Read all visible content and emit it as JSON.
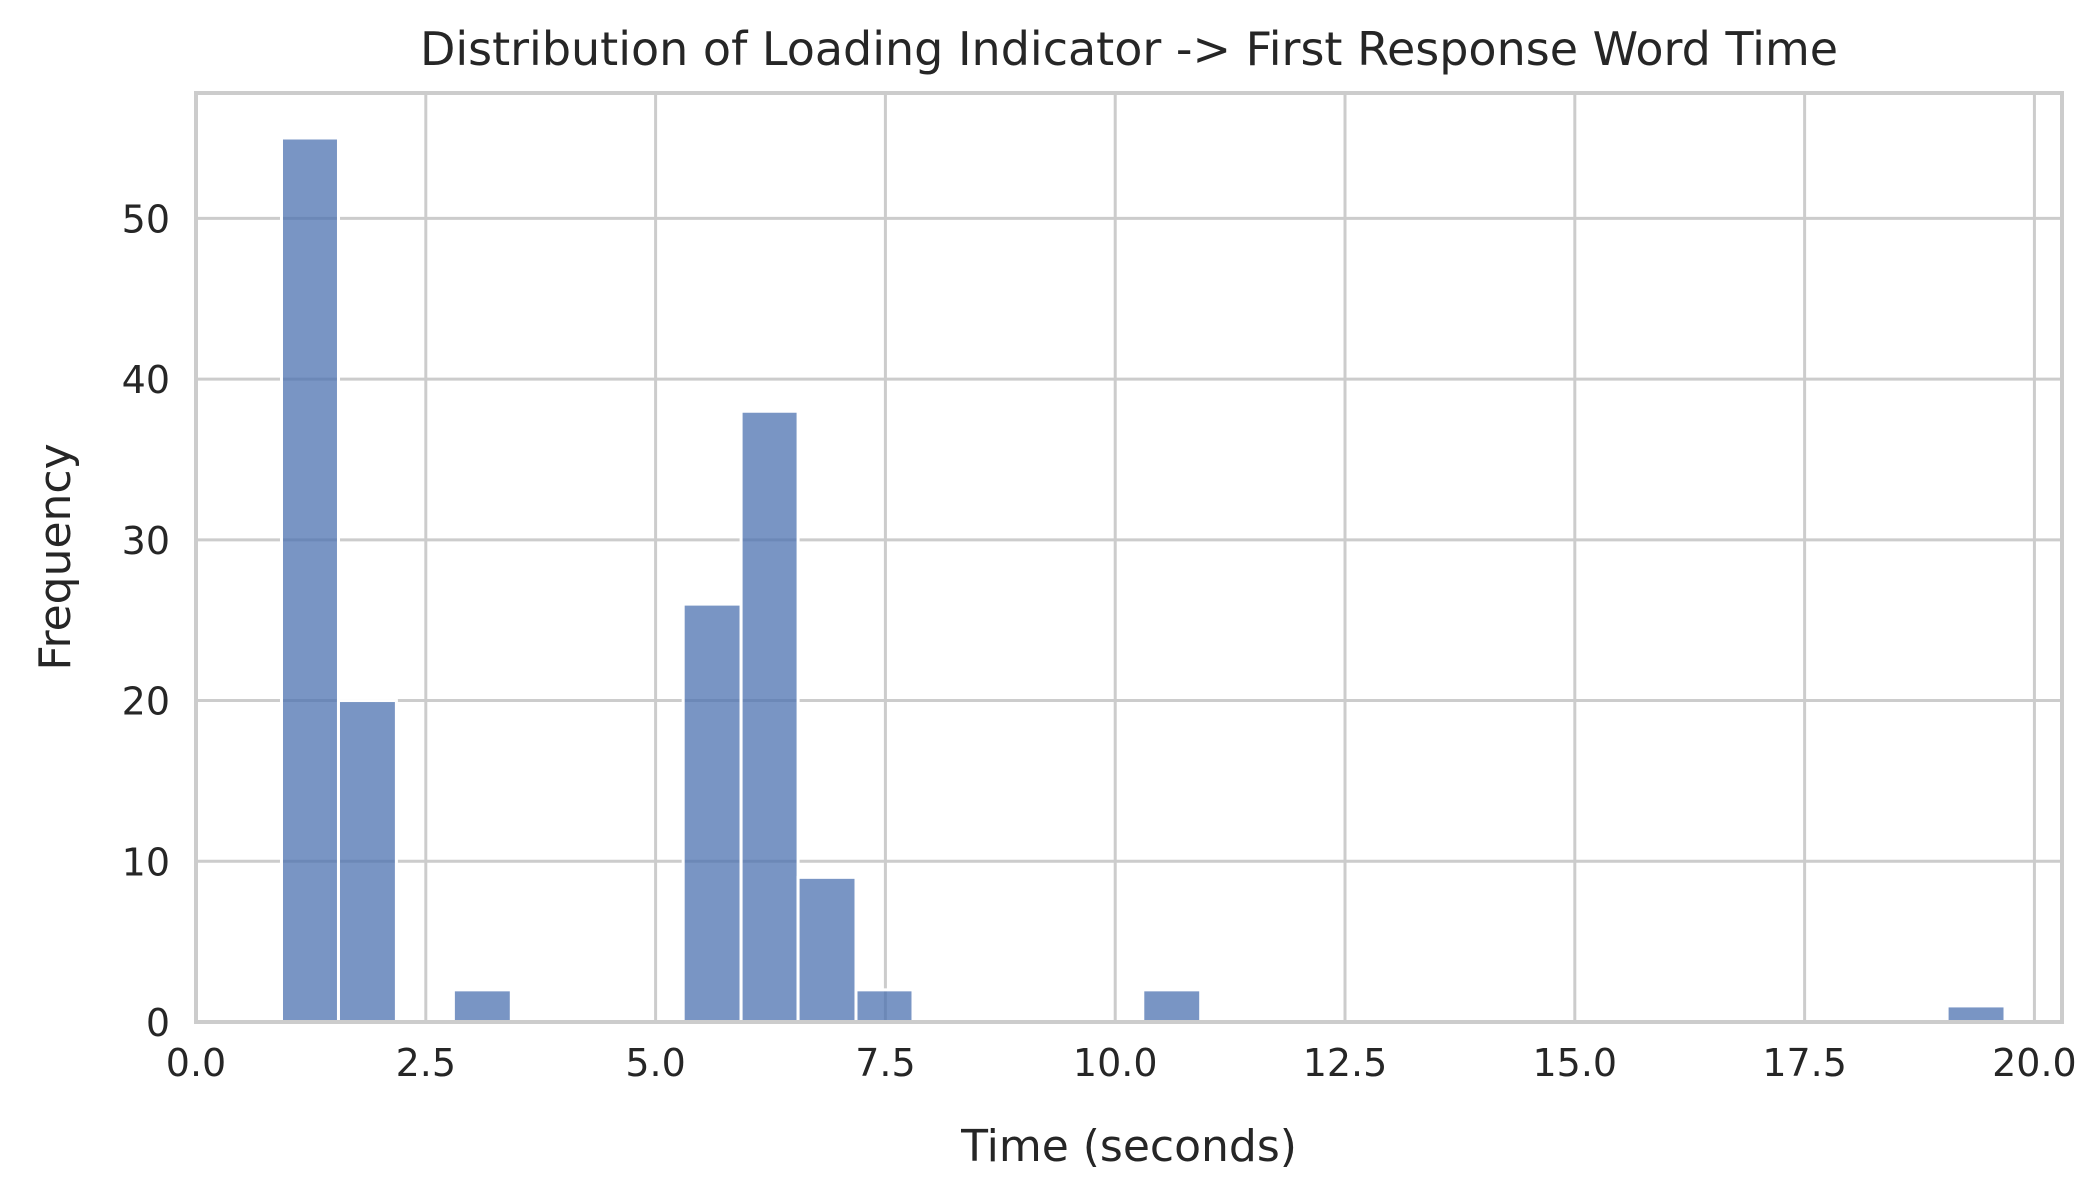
{
  "chart_data": {
    "type": "bar",
    "title": "Distribution of Loading Indicator -> First Response Word Time",
    "xlabel": "Time (seconds)",
    "ylabel": "Frequency",
    "xlim": [
      0,
      20.3
    ],
    "ylim": [
      0,
      57.8
    ],
    "x_ticks": [
      "0.0",
      "2.5",
      "5.0",
      "7.5",
      "10.0",
      "12.5",
      "15.0",
      "17.5",
      "20.0"
    ],
    "x_tick_values": [
      0,
      2.5,
      5,
      7.5,
      10,
      12.5,
      15,
      17.5,
      20
    ],
    "y_ticks": [
      "0",
      "10",
      "20",
      "30",
      "40",
      "50"
    ],
    "y_tick_values": [
      0,
      10,
      20,
      30,
      40,
      50
    ],
    "grid": true,
    "bar_color": "#4c72b0",
    "bar_opacity": 0.75,
    "bins": [
      {
        "x0": 0.93,
        "x1": 1.55,
        "count": 55
      },
      {
        "x0": 1.55,
        "x1": 2.18,
        "count": 20
      },
      {
        "x0": 2.18,
        "x1": 2.8,
        "count": 0
      },
      {
        "x0": 2.8,
        "x1": 3.43,
        "count": 2
      },
      {
        "x0": 3.43,
        "x1": 4.05,
        "count": 0
      },
      {
        "x0": 4.05,
        "x1": 4.68,
        "count": 0
      },
      {
        "x0": 4.68,
        "x1": 5.3,
        "count": 0
      },
      {
        "x0": 5.3,
        "x1": 5.93,
        "count": 26
      },
      {
        "x0": 5.93,
        "x1": 6.55,
        "count": 38
      },
      {
        "x0": 6.55,
        "x1": 7.18,
        "count": 9
      },
      {
        "x0": 7.18,
        "x1": 7.8,
        "count": 2
      },
      {
        "x0": 7.8,
        "x1": 8.43,
        "count": 0
      },
      {
        "x0": 8.43,
        "x1": 9.05,
        "count": 0
      },
      {
        "x0": 9.05,
        "x1": 9.68,
        "count": 0
      },
      {
        "x0": 9.68,
        "x1": 10.3,
        "count": 0
      },
      {
        "x0": 10.3,
        "x1": 10.93,
        "count": 2
      },
      {
        "x0": 10.93,
        "x1": 11.55,
        "count": 0
      },
      {
        "x0": 11.55,
        "x1": 12.18,
        "count": 0
      },
      {
        "x0": 12.18,
        "x1": 12.8,
        "count": 0
      },
      {
        "x0": 12.8,
        "x1": 13.43,
        "count": 0
      },
      {
        "x0": 13.43,
        "x1": 14.05,
        "count": 0
      },
      {
        "x0": 14.05,
        "x1": 14.68,
        "count": 0
      },
      {
        "x0": 14.68,
        "x1": 15.3,
        "count": 0
      },
      {
        "x0": 15.3,
        "x1": 15.93,
        "count": 0
      },
      {
        "x0": 15.93,
        "x1": 16.55,
        "count": 0
      },
      {
        "x0": 16.55,
        "x1": 17.18,
        "count": 0
      },
      {
        "x0": 17.18,
        "x1": 17.8,
        "count": 0
      },
      {
        "x0": 17.8,
        "x1": 18.43,
        "count": 0
      },
      {
        "x0": 18.43,
        "x1": 19.05,
        "count": 0
      },
      {
        "x0": 19.05,
        "x1": 19.68,
        "count": 1
      }
    ]
  }
}
